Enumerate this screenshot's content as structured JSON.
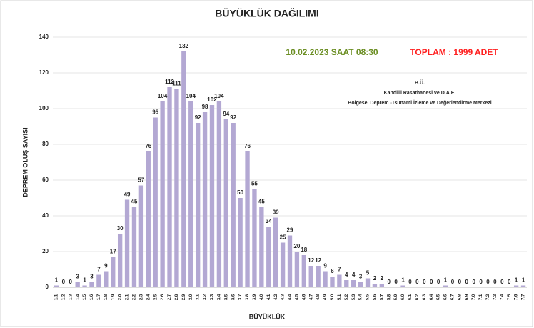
{
  "chart_data": {
    "type": "bar",
    "title": "BÜYÜKLÜK DAĞILIMI",
    "date_text": "10.02.2023 SAAT 08:30",
    "total_text": "TOPLAM : 1999 ADET",
    "info": [
      "B.Ü.",
      "Kandilli Rasathanesi ve D.A.E.",
      "Bölgesel Deprem -Tsunami İzleme ve Değerlendirme Merkezi"
    ],
    "y_label": "DEPREM OLUŞ SAYISI",
    "x_label": "BÜYÜKLÜK",
    "categories": [
      "1.1",
      "1.2",
      "1.3",
      "1.4",
      "1.5",
      "1.6",
      "1.7",
      "1.8",
      "1.9",
      "2.0",
      "2.1",
      "2.2",
      "2.3",
      "2.4",
      "2.5",
      "2.6",
      "2.7",
      "2.8",
      "2.9",
      "3.0",
      "3.1",
      "3.2",
      "3.3",
      "3.4",
      "3.5",
      "3.6",
      "3.7",
      "3.8",
      "3.9",
      "4.0",
      "4.1",
      "4.2",
      "4.3",
      "4.4",
      "4.5",
      "4.6",
      "4.7",
      "4.8",
      "4.9",
      "5.0",
      "5.1",
      "5.2",
      "5.3",
      "5.4",
      "5.5",
      "5.6",
      "5.7",
      "5.8",
      "5.9",
      "6.0",
      "6.1",
      "6.2",
      "6.3",
      "6.4",
      "6.5",
      "6.6",
      "6.7",
      "6.8",
      "6.9",
      "7.0",
      "7.1",
      "7.2",
      "7.3",
      "7.4",
      "7.5",
      "7.6",
      "7.7"
    ],
    "values": [
      1,
      0,
      0,
      3,
      1,
      3,
      7,
      9,
      17,
      30,
      49,
      45,
      57,
      76,
      95,
      104,
      112,
      111,
      132,
      104,
      92,
      98,
      102,
      104,
      94,
      92,
      50,
      76,
      55,
      45,
      34,
      39,
      25,
      29,
      20,
      18,
      12,
      12,
      9,
      6,
      7,
      4,
      4,
      3,
      5,
      2,
      2,
      0,
      0,
      1,
      0,
      0,
      0,
      0,
      0,
      1,
      0,
      0,
      0,
      0,
      0,
      0,
      0,
      0,
      0,
      1,
      1
    ],
    "color": "#b3a8d3",
    "ylim": [
      0,
      140
    ],
    "yticks": [
      0,
      20,
      40,
      60,
      80,
      100,
      120,
      140
    ],
    "grid": true
  }
}
